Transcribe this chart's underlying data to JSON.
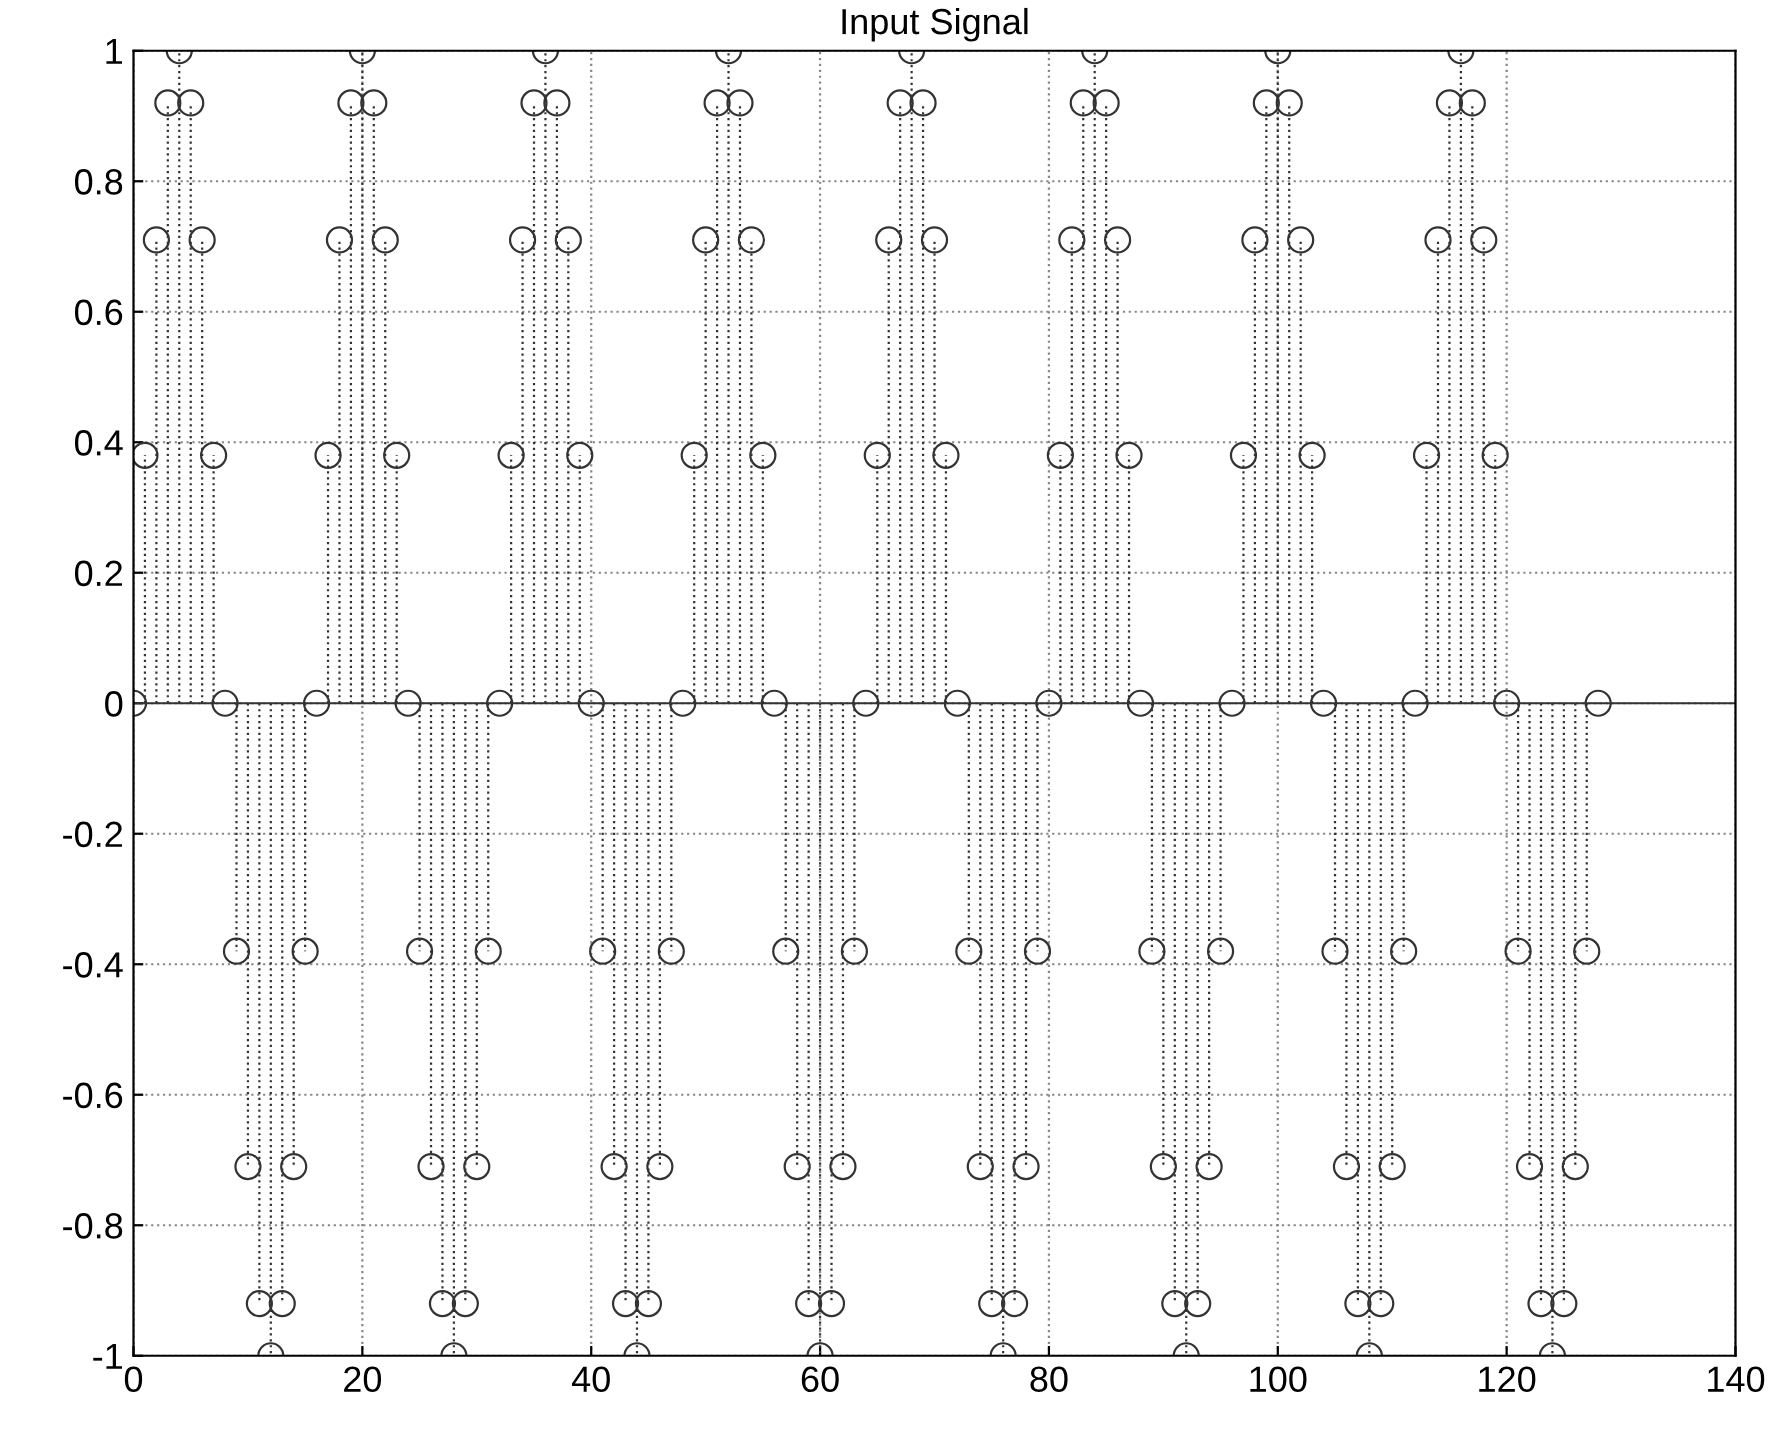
{
  "chart_data": {
    "type": "lollipop",
    "title": "Input Signal",
    "x": [
      0,
      1,
      2,
      3,
      4,
      5,
      6,
      7,
      8,
      9,
      10,
      11,
      12,
      13,
      14,
      15,
      16,
      17,
      18,
      19,
      20,
      21,
      22,
      23,
      24,
      25,
      26,
      27,
      28,
      29,
      30,
      31,
      32,
      33,
      34,
      35,
      36,
      37,
      38,
      39,
      40,
      41,
      42,
      43,
      44,
      45,
      46,
      47,
      48,
      49,
      50,
      51,
      52,
      53,
      54,
      55,
      56,
      57,
      58,
      59,
      60,
      61,
      62,
      63,
      64,
      65,
      66,
      67,
      68,
      69,
      70,
      71,
      72,
      73,
      74,
      75,
      76,
      77,
      78,
      79,
      80,
      81,
      82,
      83,
      84,
      85,
      86,
      87,
      88,
      89,
      90,
      91,
      92,
      93,
      94,
      95,
      96,
      97,
      98,
      99,
      100,
      101,
      102,
      103,
      104,
      105,
      106,
      107,
      108,
      109,
      110,
      111,
      112,
      113,
      114,
      115,
      116,
      117,
      118,
      119,
      120,
      121,
      122,
      123,
      124,
      125,
      126,
      127,
      128
    ],
    "values": [
      0,
      0.38,
      0.71,
      0.92,
      1,
      0.92,
      0.71,
      0.38,
      0,
      -0.38,
      -0.71,
      -0.92,
      -1,
      -0.92,
      -0.71,
      -0.38,
      0,
      0.38,
      0.71,
      0.92,
      1,
      0.92,
      0.71,
      0.38,
      0,
      -0.38,
      -0.71,
      -0.92,
      -1,
      -0.92,
      -0.71,
      -0.38,
      0,
      0.38,
      0.71,
      0.92,
      1,
      0.92,
      0.71,
      0.38,
      0,
      -0.38,
      -0.71,
      -0.92,
      -1,
      -0.92,
      -0.71,
      -0.38,
      0,
      0.38,
      0.71,
      0.92,
      1,
      0.92,
      0.71,
      0.38,
      0,
      -0.38,
      -0.71,
      -0.92,
      -1,
      -0.92,
      -0.71,
      -0.38,
      0,
      0.38,
      0.71,
      0.92,
      1,
      0.92,
      0.71,
      0.38,
      0,
      -0.38,
      -0.71,
      -0.92,
      -1,
      -0.92,
      -0.71,
      -0.38,
      0,
      0.38,
      0.71,
      0.92,
      1,
      0.92,
      0.71,
      0.38,
      0,
      -0.38,
      -0.71,
      -0.92,
      -1,
      -0.92,
      -0.71,
      -0.38,
      0,
      0.38,
      0.71,
      0.92,
      1,
      0.92,
      0.71,
      0.38,
      0,
      -0.38,
      -0.71,
      -0.92,
      -1,
      -0.92,
      -0.71,
      -0.38,
      0,
      0.38,
      0.71,
      0.92,
      1,
      0.92,
      0.71,
      0.38,
      0,
      -0.38,
      -0.71,
      -0.92,
      -1,
      -0.92,
      -0.71,
      -0.38,
      0
    ],
    "color": "#333333",
    "marker": "circle",
    "line_style": "dotted",
    "xlim": [
      0,
      140
    ],
    "xticks": [
      0,
      20,
      40,
      60,
      80,
      100,
      120,
      140
    ],
    "ylim": [
      -1,
      1
    ],
    "yticks": [
      -1,
      -0.8,
      -0.6,
      -0.4,
      -0.2,
      0,
      0.2,
      0.4,
      0.6,
      0.8,
      1
    ],
    "grid": true
  }
}
